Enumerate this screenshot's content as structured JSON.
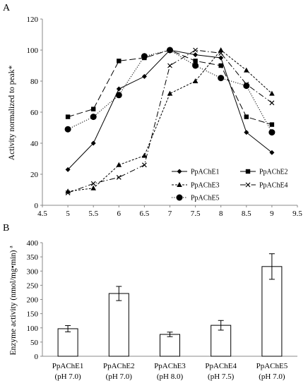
{
  "chart_data": [
    {
      "panel_label": "A",
      "type": "line",
      "xlabel": "",
      "ylabel": "Activity normalized to peak*",
      "xlim": [
        4.5,
        9.5
      ],
      "ylim": [
        0,
        120
      ],
      "xticks": [
        4.5,
        5,
        5.5,
        6,
        6.5,
        7,
        7.5,
        8,
        8.5,
        9,
        9.5
      ],
      "yticks": [
        0,
        20,
        40,
        60,
        80,
        100,
        120
      ],
      "grid": false,
      "legend_position": "bottom-right",
      "series": [
        {
          "name": "PpAChE1",
          "marker": "diamond",
          "dash": "solid",
          "x": [
            5,
            5.5,
            6,
            6.5,
            7,
            7.5,
            8,
            8.5,
            9
          ],
          "y": [
            23,
            40,
            75,
            83,
            100,
            97,
            95,
            47,
            34
          ]
        },
        {
          "name": "PpAChE2",
          "marker": "square",
          "dash": "longdash",
          "x": [
            5,
            5.5,
            6,
            6.5,
            7,
            7.5,
            8,
            8.5,
            9
          ],
          "y": [
            57,
            62,
            93,
            95,
            100,
            93,
            90,
            57,
            52
          ]
        },
        {
          "name": "PpAChE3",
          "marker": "triangle",
          "dash": "shortdash",
          "x": [
            5,
            5.5,
            6,
            6.5,
            7,
            7.5,
            8,
            8.5,
            9
          ],
          "y": [
            9,
            11,
            26,
            32,
            72,
            80,
            100,
            87,
            72
          ]
        },
        {
          "name": "PpAChE4",
          "marker": "x",
          "dash": "dashdot",
          "x": [
            5,
            5.5,
            6,
            6.5,
            7,
            7.5,
            8,
            8.5,
            9
          ],
          "y": [
            8,
            14,
            18,
            26,
            90,
            100,
            98,
            78,
            66
          ]
        },
        {
          "name": "PpAChE5",
          "marker": "circle",
          "dash": "dotted",
          "x": [
            5,
            5.5,
            6,
            6.5,
            7,
            7.5,
            8,
            8.5,
            9
          ],
          "y": [
            49,
            57,
            71,
            96,
            100,
            90,
            82,
            77,
            47
          ]
        }
      ]
    },
    {
      "panel_label": "B",
      "type": "bar",
      "ylabel": "Enzyme activity (nmol/mg•min) ª",
      "ylim": [
        0,
        400
      ],
      "yticks": [
        0,
        50,
        100,
        150,
        200,
        250,
        300,
        350,
        400
      ],
      "grid": false,
      "categories": [
        {
          "name": "PpAChE1",
          "ph": "(pH 7.0)"
        },
        {
          "name": "PpAChE2",
          "ph": "(pH 7.0)"
        },
        {
          "name": "PpAChE3",
          "ph": "(pH 8.0)"
        },
        {
          "name": "PpAChE4",
          "ph": "(pH 7.5)"
        },
        {
          "name": "PpAChE5",
          "ph": "(pH 7.0)"
        }
      ],
      "values": [
        97,
        221,
        77,
        109,
        316
      ],
      "errors": [
        11,
        25,
        8,
        17,
        45
      ]
    }
  ]
}
